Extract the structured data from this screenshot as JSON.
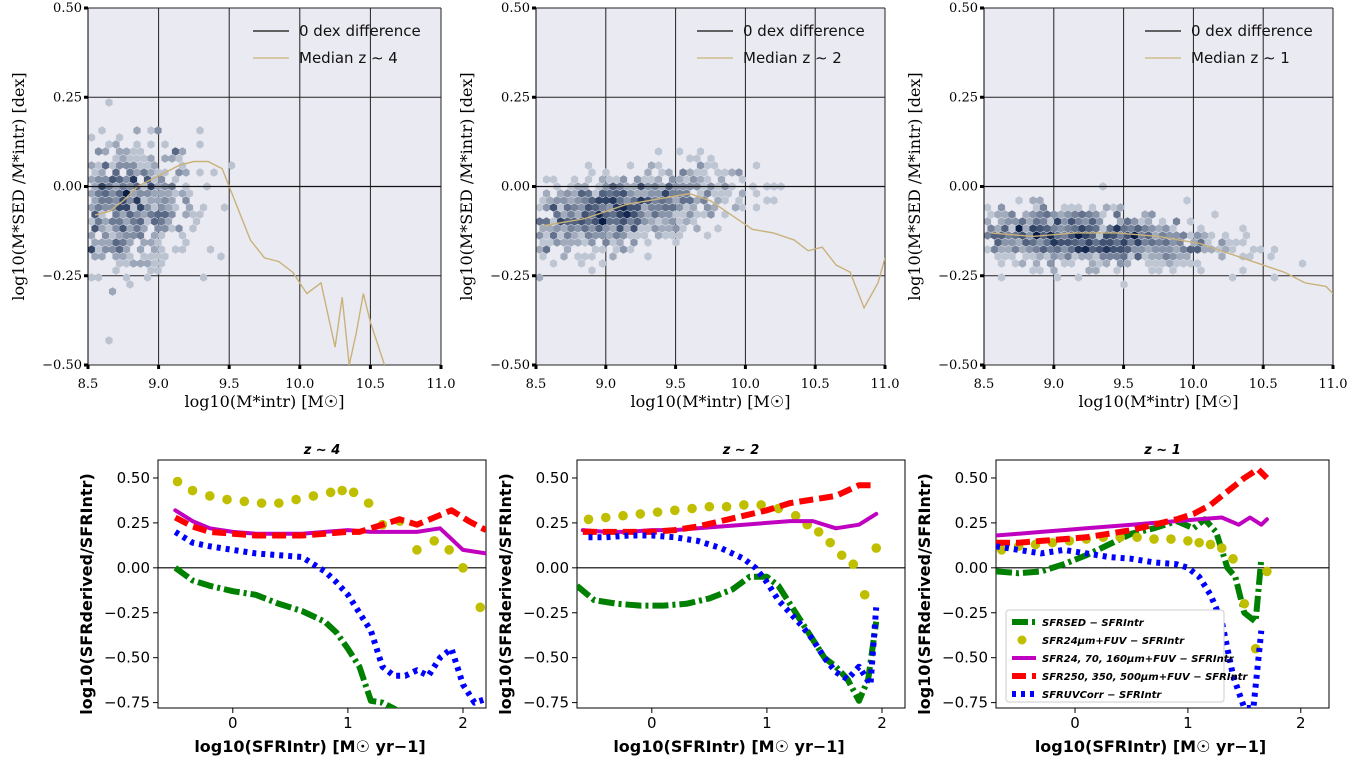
{
  "chart_data": [
    {
      "type": "scatter",
      "ylabel": "log10(M*SED /M*intr) [dex]",
      "xlabel": "log10(M*intr) [M☉]",
      "xlim": [
        8.5,
        11.0
      ],
      "ylim": [
        -0.5,
        0.5
      ],
      "xticks": [
        "8.5",
        "9.0",
        "9.5",
        "10.0",
        "10.5",
        "11.0"
      ],
      "yticks": [
        "−0.50",
        "−0.25",
        "0.00",
        "0.25",
        "0.50"
      ],
      "grid": true,
      "legend_position": "top-right",
      "legend": [
        "0 dex difference",
        "Median z ∼ 4"
      ],
      "reference_y": 0,
      "median": {
        "x": [
          8.55,
          8.65,
          8.75,
          8.85,
          8.95,
          9.05,
          9.15,
          9.25,
          9.35,
          9.45,
          9.55,
          9.65,
          9.75,
          9.85,
          9.95,
          10.05,
          10.15,
          10.25,
          10.3,
          10.35,
          10.4,
          10.45,
          10.5,
          10.6
        ],
        "y": [
          -0.08,
          -0.07,
          -0.04,
          0.0,
          0.02,
          0.04,
          0.06,
          0.07,
          0.07,
          0.05,
          -0.05,
          -0.15,
          -0.2,
          -0.21,
          -0.24,
          -0.3,
          -0.27,
          -0.45,
          -0.31,
          -0.5,
          -0.41,
          -0.3,
          -0.38,
          -0.5
        ]
      },
      "density": {
        "x_center": 8.75,
        "x_spread": 0.25,
        "y_center": -0.06,
        "y_spread": 0.09,
        "count": 650,
        "slope": 0.05
      }
    },
    {
      "type": "scatter",
      "ylabel": "log10(M*SED /M*intr) [dex]",
      "xlabel": "log10(M*intr) [M☉]",
      "xlim": [
        8.5,
        11.0
      ],
      "ylim": [
        -0.5,
        0.5
      ],
      "xticks": [
        "8.5",
        "9.0",
        "9.5",
        "10.0",
        "10.5",
        "11.0"
      ],
      "yticks": [
        "−0.50",
        "−0.25",
        "0.00",
        "0.25",
        "0.50"
      ],
      "grid": true,
      "legend_position": "top-right",
      "legend": [
        "0 dex difference",
        "Median z ∼ 2"
      ],
      "reference_y": 0,
      "median": {
        "x": [
          8.55,
          8.7,
          8.85,
          9.0,
          9.15,
          9.3,
          9.45,
          9.6,
          9.75,
          9.9,
          10.05,
          10.2,
          10.35,
          10.45,
          10.55,
          10.65,
          10.75,
          10.85,
          10.95,
          11.0
        ],
        "y": [
          -0.11,
          -0.1,
          -0.09,
          -0.07,
          -0.05,
          -0.04,
          -0.03,
          -0.02,
          -0.04,
          -0.08,
          -0.12,
          -0.13,
          -0.15,
          -0.18,
          -0.17,
          -0.22,
          -0.24,
          -0.34,
          -0.27,
          -0.2
        ]
      },
      "density": {
        "x_center": 9.05,
        "x_spread": 0.4,
        "y_center": -0.07,
        "y_spread": 0.05,
        "count": 900,
        "slope": 0.07
      }
    },
    {
      "type": "scatter",
      "ylabel": "log10(M*SED /M*intr) [dex]",
      "xlabel": "log10(M*intr) [M☉]",
      "xlim": [
        8.5,
        11.0
      ],
      "ylim": [
        -0.5,
        0.5
      ],
      "xticks": [
        "8.5",
        "9.0",
        "9.5",
        "10.0",
        "10.5",
        "11.0"
      ],
      "yticks": [
        "−0.50",
        "−0.25",
        "0.00",
        "0.25",
        "0.50"
      ],
      "grid": true,
      "legend_position": "top-right",
      "legend": [
        "0 dex difference",
        "Median z ∼ 1"
      ],
      "reference_y": 0,
      "median": {
        "x": [
          8.55,
          8.7,
          8.85,
          9.0,
          9.15,
          9.3,
          9.45,
          9.6,
          9.75,
          9.9,
          10.05,
          10.2,
          10.35,
          10.5,
          10.65,
          10.8,
          10.95,
          11.0
        ],
        "y": [
          -0.13,
          -0.135,
          -0.14,
          -0.135,
          -0.13,
          -0.13,
          -0.13,
          -0.135,
          -0.14,
          -0.15,
          -0.16,
          -0.18,
          -0.2,
          -0.22,
          -0.24,
          -0.27,
          -0.28,
          -0.3
        ]
      },
      "density": {
        "x_center": 9.15,
        "x_spread": 0.5,
        "y_center": -0.14,
        "y_spread": 0.04,
        "count": 1000,
        "slope": -0.02
      }
    },
    {
      "type": "line",
      "title": "z ∼ 4",
      "xlabel": "log10(SFRIntr) [M☉ yr−1]",
      "ylabel": "log10(SFRderived/SFRIntr)",
      "xlim": [
        -0.65,
        2.2
      ],
      "ylim": [
        -0.78,
        0.6
      ],
      "xticks": [
        "0",
        "1",
        "2"
      ],
      "yticks": [
        "0.50",
        "0.25",
        "0.00",
        "−0.25",
        "−0.50",
        "−0.75"
      ],
      "reference_y": 0,
      "series": [
        {
          "color": "#008000",
          "style": "dashdot",
          "x": [
            -0.5,
            -0.35,
            -0.2,
            0.0,
            0.2,
            0.4,
            0.6,
            0.8,
            0.9,
            1.0,
            1.1,
            1.2,
            1.3,
            1.45
          ],
          "y": [
            0.0,
            -0.07,
            -0.1,
            -0.13,
            -0.15,
            -0.2,
            -0.24,
            -0.3,
            -0.36,
            -0.45,
            -0.55,
            -0.74,
            -0.75,
            -0.8
          ]
        },
        {
          "color": "#bfbf00",
          "style": "dots",
          "x": [
            -0.48,
            -0.35,
            -0.2,
            -0.05,
            0.1,
            0.25,
            0.4,
            0.55,
            0.7,
            0.85,
            0.95,
            1.05,
            1.18,
            1.3,
            1.45,
            1.6,
            1.75,
            1.88,
            2.0,
            2.15
          ],
          "y": [
            0.48,
            0.43,
            0.4,
            0.38,
            0.37,
            0.36,
            0.36,
            0.38,
            0.4,
            0.42,
            0.43,
            0.42,
            0.36,
            0.24,
            0.26,
            0.1,
            0.15,
            0.1,
            0.0,
            -0.22
          ]
        },
        {
          "color": "#c000c0",
          "style": "solid",
          "x": [
            -0.5,
            -0.35,
            -0.2,
            0.0,
            0.2,
            0.4,
            0.6,
            0.8,
            1.0,
            1.2,
            1.4,
            1.6,
            1.8,
            1.9,
            2.0,
            2.2
          ],
          "y": [
            0.32,
            0.26,
            0.22,
            0.2,
            0.19,
            0.19,
            0.19,
            0.2,
            0.21,
            0.2,
            0.2,
            0.2,
            0.22,
            0.16,
            0.1,
            0.08
          ]
        },
        {
          "color": "#ff0000",
          "style": "dashed",
          "x": [
            -0.5,
            -0.35,
            -0.2,
            0.0,
            0.2,
            0.4,
            0.6,
            0.8,
            1.0,
            1.1,
            1.2,
            1.3,
            1.45,
            1.6,
            1.75,
            1.9,
            2.05,
            2.2
          ],
          "y": [
            0.28,
            0.23,
            0.2,
            0.19,
            0.18,
            0.18,
            0.18,
            0.19,
            0.2,
            0.2,
            0.22,
            0.24,
            0.27,
            0.24,
            0.28,
            0.32,
            0.26,
            0.21
          ]
        },
        {
          "color": "#0000ff",
          "style": "dotted",
          "x": [
            -0.5,
            -0.35,
            -0.2,
            0.0,
            0.2,
            0.4,
            0.6,
            0.8,
            0.9,
            1.0,
            1.1,
            1.2,
            1.3,
            1.4,
            1.5,
            1.6,
            1.7,
            1.8,
            1.9,
            2.0,
            2.1,
            2.2
          ],
          "y": [
            0.2,
            0.14,
            0.12,
            0.1,
            0.08,
            0.07,
            0.06,
            -0.02,
            -0.08,
            -0.15,
            -0.25,
            -0.35,
            -0.55,
            -0.6,
            -0.6,
            -0.57,
            -0.6,
            -0.5,
            -0.45,
            -0.65,
            -0.75,
            -0.73
          ]
        }
      ]
    },
    {
      "type": "line",
      "title": "z ∼ 2",
      "xlabel": "log10(SFRIntr) [M☉ yr−1]",
      "ylabel": "log10(SFRderived/SFRIntr)",
      "xlim": [
        -0.65,
        2.2
      ],
      "ylim": [
        -0.78,
        0.6
      ],
      "xticks": [
        "0",
        "1",
        "2"
      ],
      "yticks": [
        "0.50",
        "0.25",
        "0.00",
        "−0.25",
        "−0.50",
        "−0.75"
      ],
      "reference_y": 0,
      "series": [
        {
          "color": "#008000",
          "style": "dashdot",
          "x": [
            -0.65,
            -0.5,
            -0.3,
            -0.1,
            0.1,
            0.3,
            0.5,
            0.7,
            0.85,
            1.0,
            1.1,
            1.2,
            1.35,
            1.5,
            1.6,
            1.7,
            1.8,
            1.88,
            1.95
          ],
          "y": [
            -0.1,
            -0.18,
            -0.2,
            -0.21,
            -0.21,
            -0.2,
            -0.17,
            -0.12,
            -0.05,
            -0.05,
            -0.1,
            -0.2,
            -0.35,
            -0.5,
            -0.55,
            -0.62,
            -0.74,
            -0.62,
            -0.3
          ]
        },
        {
          "color": "#bfbf00",
          "style": "dots",
          "x": [
            -0.55,
            -0.4,
            -0.25,
            -0.1,
            0.05,
            0.2,
            0.35,
            0.5,
            0.65,
            0.8,
            0.95,
            1.1,
            1.25,
            1.35,
            1.45,
            1.55,
            1.65,
            1.75,
            1.85,
            1.95
          ],
          "y": [
            0.27,
            0.28,
            0.29,
            0.3,
            0.31,
            0.32,
            0.33,
            0.34,
            0.34,
            0.35,
            0.35,
            0.33,
            0.29,
            0.24,
            0.2,
            0.14,
            0.07,
            0.02,
            -0.15,
            0.11
          ]
        },
        {
          "color": "#c000c0",
          "style": "solid",
          "x": [
            -0.6,
            -0.4,
            -0.2,
            0.0,
            0.2,
            0.4,
            0.6,
            0.8,
            1.0,
            1.2,
            1.4,
            1.6,
            1.8,
            1.95
          ],
          "y": [
            0.21,
            0.2,
            0.2,
            0.21,
            0.21,
            0.22,
            0.23,
            0.24,
            0.25,
            0.26,
            0.26,
            0.22,
            0.24,
            0.3
          ]
        },
        {
          "color": "#ff0000",
          "style": "dashed",
          "x": [
            -0.6,
            -0.4,
            -0.2,
            0.0,
            0.2,
            0.4,
            0.6,
            0.8,
            1.0,
            1.2,
            1.4,
            1.6,
            1.8,
            1.95
          ],
          "y": [
            0.2,
            0.2,
            0.2,
            0.2,
            0.21,
            0.23,
            0.26,
            0.29,
            0.32,
            0.36,
            0.38,
            0.4,
            0.46,
            0.46
          ]
        },
        {
          "color": "#0000ff",
          "style": "dotted",
          "x": [
            -0.55,
            -0.4,
            -0.2,
            0.0,
            0.2,
            0.4,
            0.6,
            0.8,
            0.9,
            1.0,
            1.1,
            1.2,
            1.3,
            1.4,
            1.5,
            1.6,
            1.7,
            1.8,
            1.9,
            1.95
          ],
          "y": [
            0.17,
            0.17,
            0.18,
            0.18,
            0.17,
            0.15,
            0.11,
            0.05,
            0.0,
            -0.08,
            -0.18,
            -0.25,
            -0.32,
            -0.4,
            -0.5,
            -0.58,
            -0.62,
            -0.55,
            -0.65,
            -0.22
          ]
        }
      ]
    },
    {
      "type": "line",
      "title": "z ∼ 1",
      "xlabel": "log10(SFRIntr) [M☉ yr−1]",
      "ylabel": "log10(SFRderived/SFRIntr)",
      "xlim": [
        -0.7,
        2.25
      ],
      "ylim": [
        -0.78,
        0.6
      ],
      "xticks": [
        "0",
        "1",
        "2"
      ],
      "yticks": [
        "0.50",
        "0.25",
        "0.00",
        "−0.25",
        "−0.50",
        "−0.75"
      ],
      "reference_y": 0,
      "legend_position": "lower-right",
      "series": [
        {
          "name": "SFRSED − SFRIntr",
          "color": "#008000",
          "style": "dashdot",
          "x": [
            -0.7,
            -0.5,
            -0.3,
            -0.1,
            0.1,
            0.3,
            0.5,
            0.7,
            0.9,
            1.05,
            1.15,
            1.25,
            1.35,
            1.42,
            1.5,
            1.6,
            1.65
          ],
          "y": [
            -0.02,
            -0.03,
            -0.02,
            0.02,
            0.07,
            0.13,
            0.19,
            0.22,
            0.26,
            0.22,
            0.27,
            0.2,
            0.0,
            -0.05,
            -0.25,
            -0.3,
            0.05
          ]
        },
        {
          "name": "SFR24μm+FUV − SFRIntr",
          "color": "#bfbf00",
          "style": "dots",
          "x": [
            -0.65,
            -0.5,
            -0.35,
            -0.2,
            -0.05,
            0.1,
            0.25,
            0.4,
            0.55,
            0.7,
            0.85,
            1.0,
            1.1,
            1.2,
            1.3,
            1.4,
            1.5,
            1.6,
            1.7
          ],
          "y": [
            0.1,
            0.12,
            0.13,
            0.14,
            0.15,
            0.16,
            0.17,
            0.17,
            0.17,
            0.16,
            0.16,
            0.15,
            0.14,
            0.13,
            0.11,
            0.05,
            -0.2,
            -0.45,
            -0.02
          ]
        },
        {
          "name": "SFR24, 70, 160μm+FUV − SFRIntr",
          "color": "#c000c0",
          "style": "solid",
          "x": [
            -0.7,
            -0.5,
            -0.3,
            -0.1,
            0.1,
            0.3,
            0.5,
            0.7,
            0.9,
            1.1,
            1.3,
            1.45,
            1.55,
            1.65,
            1.7
          ],
          "y": [
            0.18,
            0.19,
            0.2,
            0.21,
            0.22,
            0.23,
            0.24,
            0.25,
            0.26,
            0.27,
            0.28,
            0.24,
            0.28,
            0.24,
            0.27
          ]
        },
        {
          "name": "SFR250, 350, 500μm+FUV − SFRIntr",
          "color": "#ff0000",
          "style": "dashed",
          "x": [
            -0.7,
            -0.5,
            -0.3,
            -0.1,
            0.1,
            0.3,
            0.5,
            0.7,
            0.9,
            1.05,
            1.2,
            1.3,
            1.4,
            1.5,
            1.55,
            1.62,
            1.7
          ],
          "y": [
            0.14,
            0.14,
            0.15,
            0.16,
            0.17,
            0.19,
            0.21,
            0.24,
            0.27,
            0.3,
            0.35,
            0.4,
            0.45,
            0.5,
            0.52,
            0.55,
            0.5
          ]
        },
        {
          "name": "SFRUVCorr − SFRIntr",
          "color": "#0000ff",
          "style": "dotted",
          "x": [
            -0.7,
            -0.5,
            -0.3,
            -0.1,
            0.1,
            0.3,
            0.5,
            0.7,
            0.9,
            1.0,
            1.1,
            1.2,
            1.3,
            1.4,
            1.5,
            1.58,
            1.65
          ],
          "y": [
            0.12,
            0.1,
            0.08,
            0.1,
            0.08,
            0.06,
            0.05,
            0.03,
            0.02,
            0.0,
            -0.05,
            -0.15,
            -0.3,
            -0.6,
            -0.78,
            -0.78,
            -0.35
          ]
        }
      ]
    }
  ]
}
